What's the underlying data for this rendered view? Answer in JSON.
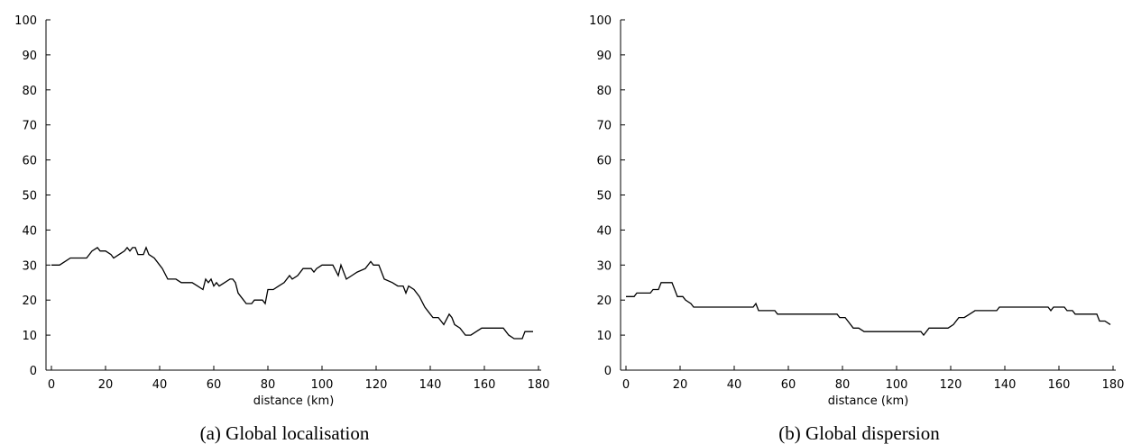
{
  "chart_data": [
    {
      "type": "line",
      "caption": "(a) Global localisation",
      "xlabel": "distance (km)",
      "color": "#000000",
      "x": [
        0,
        3,
        5,
        7,
        10,
        13,
        15,
        17,
        18,
        20,
        22,
        23,
        25,
        27,
        28,
        29,
        30,
        31,
        32,
        34,
        35,
        36,
        38,
        40,
        41,
        43,
        46,
        48,
        52,
        54,
        56,
        57,
        58,
        59,
        60,
        61,
        62,
        64,
        66,
        67,
        68,
        69,
        71,
        72,
        74,
        75,
        78,
        79,
        80,
        82,
        84,
        86,
        88,
        89,
        91,
        93,
        96,
        97,
        98,
        100,
        104,
        106,
        107,
        108,
        109,
        111,
        113,
        116,
        118,
        119,
        121,
        123,
        126,
        128,
        130,
        131,
        132,
        134,
        136,
        138,
        140,
        141,
        143,
        145,
        147,
        148,
        149,
        151,
        153,
        155,
        157,
        159,
        167,
        169,
        171,
        174,
        175,
        178
      ],
      "values": [
        30,
        30,
        31,
        32,
        32,
        32,
        34,
        35,
        34,
        34,
        33,
        32,
        33,
        34,
        35,
        34,
        35,
        35,
        33,
        33,
        35,
        33,
        32,
        30,
        29,
        26,
        26,
        25,
        25,
        24,
        23,
        26,
        25,
        26,
        24,
        25,
        24,
        25,
        26,
        26,
        25,
        22,
        20,
        19,
        19,
        20,
        20,
        19,
        23,
        23,
        24,
        25,
        27,
        26,
        27,
        29,
        29,
        28,
        29,
        30,
        30,
        27,
        30,
        28,
        26,
        27,
        28,
        29,
        31,
        30,
        30,
        26,
        25,
        24,
        24,
        22,
        24,
        23,
        21,
        18,
        16,
        15,
        15,
        13,
        16,
        15,
        13,
        12,
        10,
        10,
        11,
        12,
        12,
        10,
        9,
        9,
        11,
        11
      ],
      "xlim": [
        -2,
        181
      ],
      "ylim": [
        0,
        100
      ],
      "xticks": [
        0,
        20,
        40,
        60,
        80,
        100,
        120,
        140,
        160,
        180
      ],
      "yticks": [
        0,
        10,
        20,
        30,
        40,
        50,
        60,
        70,
        80,
        90,
        100
      ]
    },
    {
      "type": "line",
      "caption": "(b) Global dispersion",
      "xlabel": "distance (km)",
      "color": "#000000",
      "x": [
        0,
        3,
        4,
        7,
        9,
        10,
        12,
        13,
        17,
        18,
        19,
        21,
        22,
        24,
        25,
        47,
        48,
        49,
        55,
        56,
        78,
        79,
        81,
        82,
        84,
        86,
        88,
        109,
        110,
        112,
        119,
        121,
        123,
        125,
        127,
        129,
        137,
        138,
        156,
        157,
        158,
        162,
        163,
        165,
        166,
        174,
        175,
        177,
        179
      ],
      "values": [
        21,
        21,
        22,
        22,
        22,
        23,
        23,
        25,
        25,
        23,
        21,
        21,
        20,
        19,
        18,
        18,
        19,
        17,
        17,
        16,
        16,
        15,
        15,
        14,
        12,
        12,
        11,
        11,
        10,
        12,
        12,
        13,
        15,
        15,
        16,
        17,
        17,
        18,
        18,
        17,
        18,
        18,
        17,
        17,
        16,
        16,
        14,
        14,
        13
      ],
      "xlim": [
        -2,
        181
      ],
      "ylim": [
        0,
        100
      ],
      "xticks": [
        0,
        20,
        40,
        60,
        80,
        100,
        120,
        140,
        160,
        180
      ],
      "yticks": [
        0,
        10,
        20,
        30,
        40,
        50,
        60,
        70,
        80,
        90,
        100
      ]
    }
  ]
}
